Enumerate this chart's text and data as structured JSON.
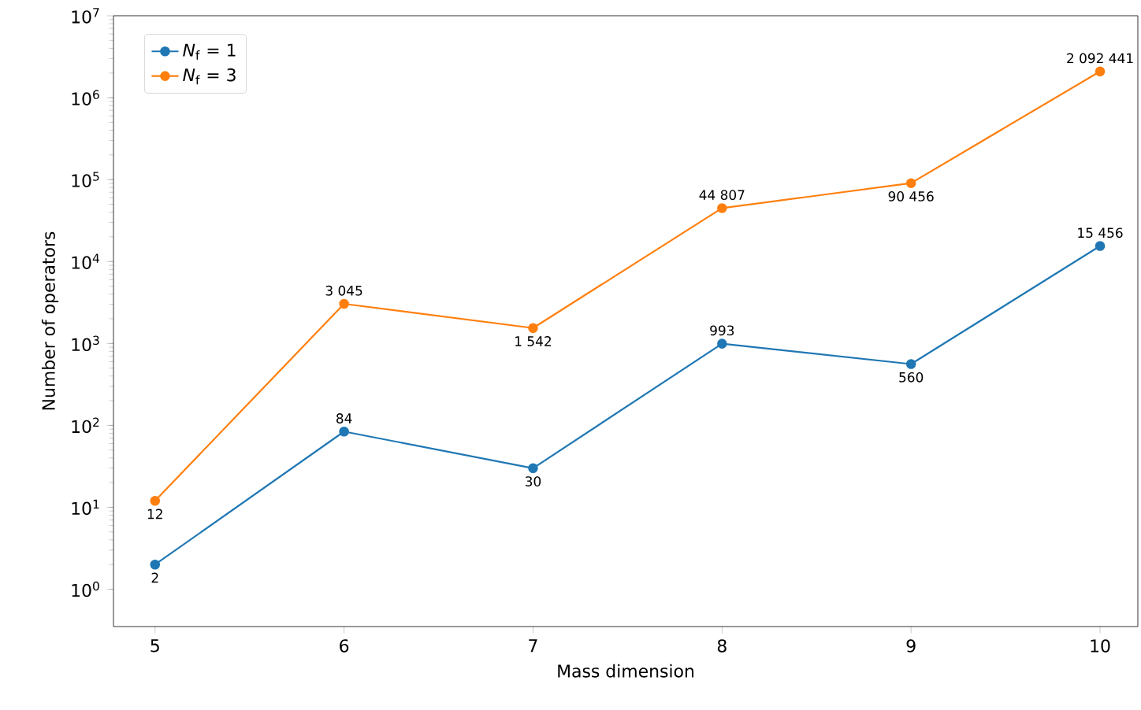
{
  "chart_data": {
    "type": "line",
    "xlabel": "Mass dimension",
    "ylabel": "Number of operators",
    "x": [
      5,
      6,
      7,
      8,
      9,
      10
    ],
    "series": [
      {
        "name": "*N*$_{f}$ = 1",
        "color": "#1f77b4",
        "values": [
          2,
          84,
          30,
          993,
          560,
          15456
        ],
        "value_labels": [
          "2",
          "84",
          "30",
          "993",
          "560",
          "15 456"
        ]
      },
      {
        "name": "*N*$_{f}$ = 3",
        "color": "#ff7f0e",
        "values": [
          12,
          3045,
          1542,
          44807,
          90456,
          2092441
        ],
        "value_labels": [
          "12",
          "3 045",
          "1 542",
          "44 807",
          "90 456",
          "2 092 441"
        ]
      }
    ],
    "log": "y",
    "marker": "circle",
    "legend": "top left",
    "xlim": [
      4.78,
      10.2
    ],
    "ylim": [
      0.35,
      10000000
    ],
    "xticks": [
      5,
      6,
      7,
      8,
      9,
      10
    ],
    "yticks": [
      {
        "value": 1,
        "label": "10$^{0}$"
      },
      {
        "value": 10,
        "label": "10$^{1}$"
      },
      {
        "value": 100,
        "label": "10$^{2}$"
      },
      {
        "value": 1000,
        "label": "10$^{3}$"
      },
      {
        "value": 10000,
        "label": "10$^{4}$"
      },
      {
        "value": 100000,
        "label": "10$^{5}$"
      },
      {
        "value": 1000000,
        "label": "10$^{6}$"
      },
      {
        "value": 10000000,
        "label": "10$^{7}$"
      }
    ]
  }
}
